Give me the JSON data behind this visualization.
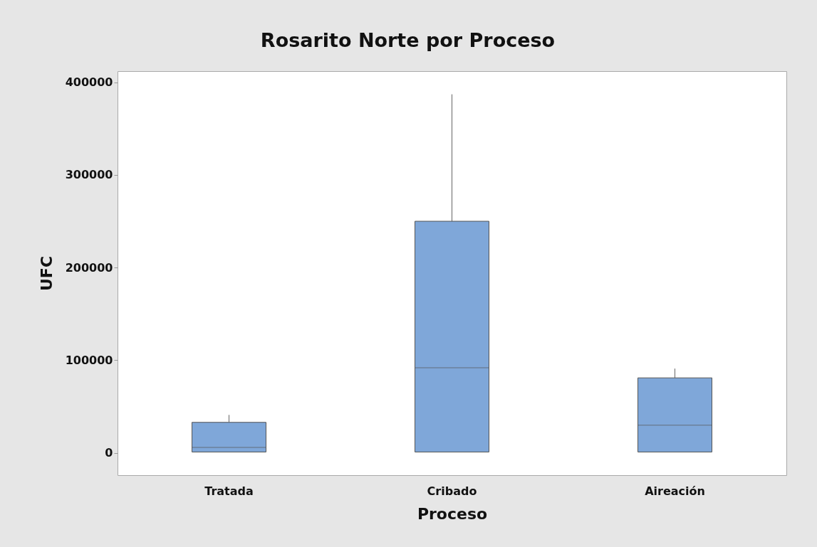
{
  "chart_data": {
    "type": "box",
    "title": "Rosarito Norte por Proceso",
    "xlabel": "Proceso",
    "ylabel": "UFC",
    "categories": [
      "Tratada",
      "Cribado",
      "Aireación"
    ],
    "series": [
      {
        "color": "#7fa7d9",
        "boxes": [
          {
            "low": 1000,
            "q1": 1000,
            "median": 6000,
            "q3": 33000,
            "high": 41000
          },
          {
            "low": 1000,
            "q1": 1000,
            "median": 92000,
            "q3": 250000,
            "high": 387000
          },
          {
            "low": 1000,
            "q1": 1000,
            "median": 30000,
            "q3": 81000,
            "high": 91000
          }
        ]
      }
    ],
    "ylim": [
      -24000,
      412000
    ],
    "yticks": [
      0,
      100000,
      200000,
      300000,
      400000
    ],
    "grid": false,
    "legend": false
  }
}
